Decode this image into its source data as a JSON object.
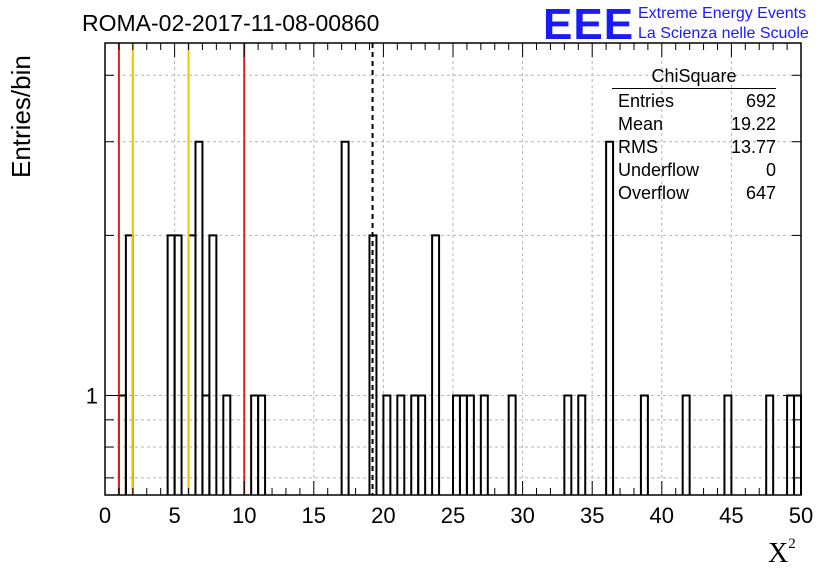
{
  "title": "ROMA-02-2017-11-08-00860",
  "logo": {
    "mark": "EEE",
    "line1": "Extreme Energy Events",
    "line2": "La Scienza nelle Scuole",
    "color": "#1a1aff"
  },
  "stats": {
    "title": "ChiSquare",
    "rows": [
      {
        "label": "Entries",
        "value": "692"
      },
      {
        "label": "Mean",
        "value": "19.22"
      },
      {
        "label": "RMS",
        "value": "13.77"
      },
      {
        "label": "Underflow",
        "value": "0"
      },
      {
        "label": "Overflow",
        "value": "647"
      }
    ]
  },
  "chart_data": {
    "type": "bar",
    "title": "ROMA-02-2017-11-08-00860",
    "xlabel": "X",
    "xlabel_sup": "2",
    "ylabel": "Entries/bin",
    "y_log_scale": true,
    "xlim": [
      0,
      50
    ],
    "ylim_log": [
      0.65,
      4.6
    ],
    "xticks": [
      0,
      5,
      10,
      15,
      20,
      25,
      30,
      35,
      40,
      45,
      50
    ],
    "yticks": [
      "1"
    ],
    "grid": true,
    "bin_width": 0.5,
    "bins": [
      {
        "x": 1.0,
        "value": 1
      },
      {
        "x": 1.5,
        "value": 2
      },
      {
        "x": 4.5,
        "value": 2
      },
      {
        "x": 5.0,
        "value": 2
      },
      {
        "x": 6.0,
        "value": 2
      },
      {
        "x": 6.5,
        "value": 3
      },
      {
        "x": 7.0,
        "value": 1
      },
      {
        "x": 7.5,
        "value": 2
      },
      {
        "x": 8.5,
        "value": 1
      },
      {
        "x": 10.5,
        "value": 1
      },
      {
        "x": 11.0,
        "value": 1
      },
      {
        "x": 17.0,
        "value": 3
      },
      {
        "x": 19.0,
        "value": 2
      },
      {
        "x": 20.0,
        "value": 1
      },
      {
        "x": 21.0,
        "value": 1
      },
      {
        "x": 22.0,
        "value": 1
      },
      {
        "x": 22.5,
        "value": 1
      },
      {
        "x": 23.5,
        "value": 2
      },
      {
        "x": 25.0,
        "value": 1
      },
      {
        "x": 25.5,
        "value": 1
      },
      {
        "x": 26.0,
        "value": 1
      },
      {
        "x": 27.0,
        "value": 1
      },
      {
        "x": 29.0,
        "value": 1
      },
      {
        "x": 33.0,
        "value": 1
      },
      {
        "x": 34.0,
        "value": 1
      },
      {
        "x": 36.0,
        "value": 3
      },
      {
        "x": 38.5,
        "value": 1
      },
      {
        "x": 41.5,
        "value": 1
      },
      {
        "x": 44.5,
        "value": 1
      },
      {
        "x": 47.5,
        "value": 1
      },
      {
        "x": 49.0,
        "value": 1
      },
      {
        "x": 49.5,
        "value": 1
      }
    ],
    "vertical_lines": [
      {
        "x": 1.0,
        "color": "#dd2222",
        "style": "solid"
      },
      {
        "x": 2.0,
        "color": "#f2c200",
        "style": "solid"
      },
      {
        "x": 6.0,
        "color": "#f2c200",
        "style": "solid"
      },
      {
        "x": 10.0,
        "color": "#dd2222",
        "style": "solid"
      },
      {
        "x": 19.22,
        "color": "#000000",
        "style": "dashed"
      }
    ]
  }
}
